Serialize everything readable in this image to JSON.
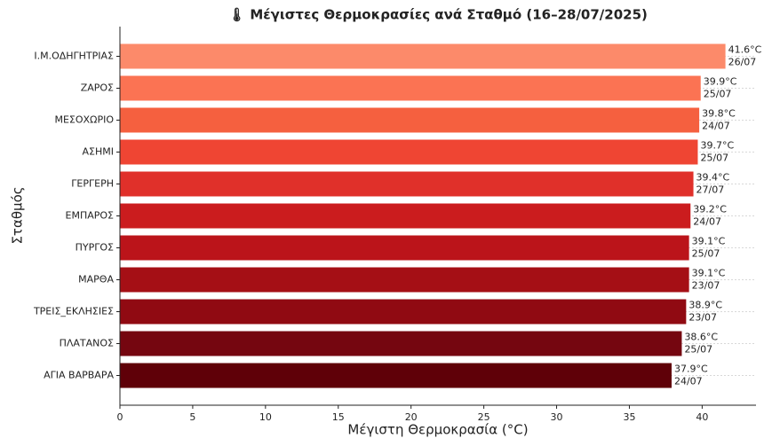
{
  "chart_data": {
    "type": "barh",
    "title": "🌡 Μέγιστες Θερμοκρασίες ανά Σταθμό (16–28/07/2025)",
    "xlabel": "Μέγιστη Θερμοκρασία (°C)",
    "ylabel": "Σταθμός",
    "categories": [
      "Ι.Μ.ΟΔΗΓΗΤΡΙΑΣ",
      "ΖΑΡΟΣ",
      "ΜΕΣΟΧΩΡΙΟ",
      "ΑΣΗΜΙ",
      "ΓΕΡΓΕΡΗ",
      "ΕΜΠΑΡΟΣ",
      "ΠΥΡΓΟΣ",
      "ΜΑΡΘΑ",
      "ΤΡΕΙΣ_ΕΚΛΗΣΙΕΣ",
      "ΠΛΑΤΑΝΟΣ",
      "ΑΓΙΑ ΒΑΡΒΑΡΑ"
    ],
    "values": [
      41.6,
      39.9,
      39.8,
      39.7,
      39.4,
      39.2,
      39.1,
      39.1,
      38.9,
      38.6,
      37.9
    ],
    "value_labels": [
      "41.6°C",
      "39.9°C",
      "39.8°C",
      "39.7°C",
      "39.4°C",
      "39.2°C",
      "39.1°C",
      "39.1°C",
      "38.9°C",
      "38.6°C",
      "37.9°C"
    ],
    "dates": [
      "26/07",
      "25/07",
      "24/07",
      "25/07",
      "27/07",
      "24/07",
      "25/07",
      "23/07",
      "23/07",
      "25/07",
      "24/07"
    ],
    "colors": [
      "#fc8a6a",
      "#fb7353",
      "#f5603f",
      "#ef4533",
      "#e0302a",
      "#cb1c1e",
      "#bb141a",
      "#a50f15",
      "#900a12",
      "#750610",
      "#5f0008"
    ],
    "xlim": [
      0,
      43.7
    ],
    "xticks": [
      0,
      5,
      10,
      15,
      20,
      25,
      30,
      35,
      40
    ],
    "grid": true
  }
}
